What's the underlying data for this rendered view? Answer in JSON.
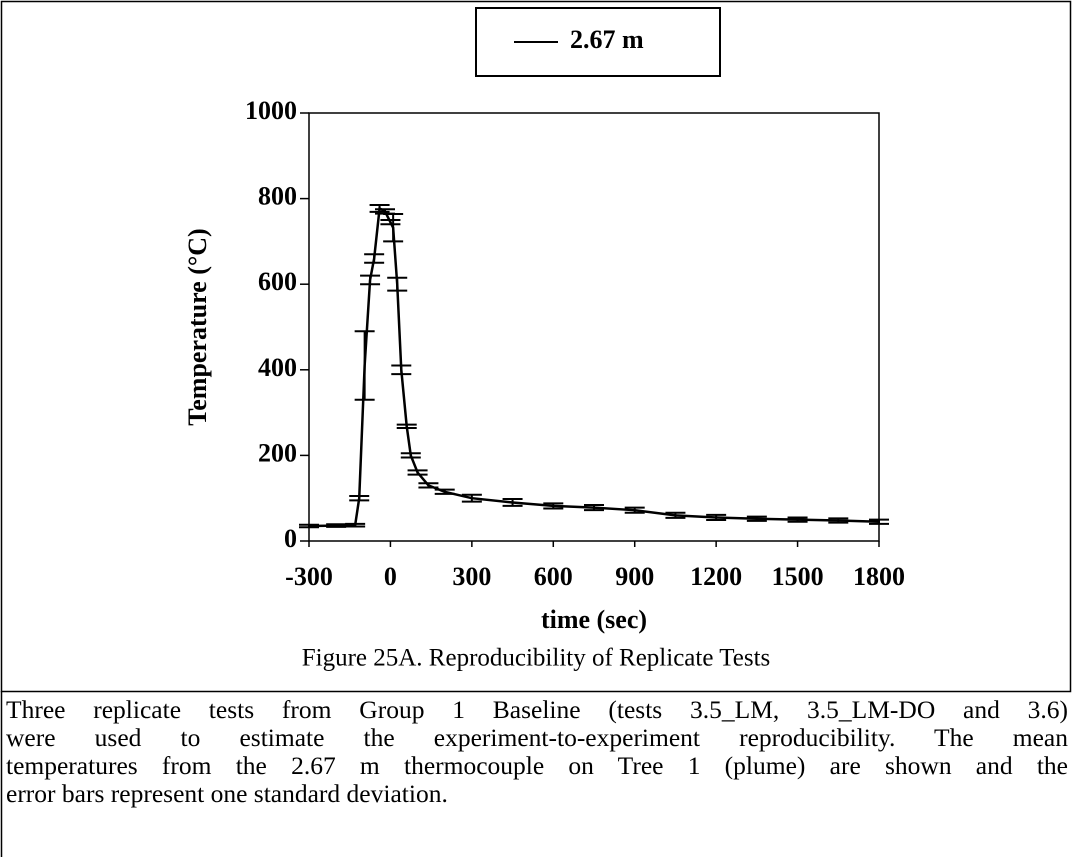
{
  "chart_data": {
    "type": "line",
    "xlabel": "time (sec)",
    "ylabel": "Temperature (°C)",
    "x": [
      -300,
      -200,
      -130,
      -115,
      -95,
      -75,
      -60,
      -40,
      -20,
      0,
      10,
      25,
      40,
      60,
      75,
      100,
      140,
      200,
      300,
      450,
      600,
      750,
      900,
      1050,
      1200,
      1350,
      1500,
      1650,
      1800
    ],
    "series": [
      {
        "name": "2.67 m",
        "color": "#000000",
        "values": [
          35,
          36,
          37,
          100,
          410,
          610,
          660,
          777,
          770,
          745,
          732,
          600,
          400,
          268,
          200,
          160,
          130,
          115,
          100,
          90,
          82,
          78,
          72,
          60,
          55,
          52,
          50,
          48,
          45
        ],
        "errors": [
          3,
          3,
          3,
          5,
          80,
          10,
          10,
          8,
          5,
          5,
          32,
          15,
          10,
          4,
          5,
          5,
          5,
          5,
          8,
          8,
          6,
          6,
          6,
          6,
          6,
          5,
          5,
          5,
          5
        ]
      }
    ],
    "xlim": [
      -300,
      1800
    ],
    "xticks": [
      -300,
      0,
      300,
      600,
      900,
      1200,
      1500,
      1800
    ],
    "ylim": [
      0,
      1000
    ],
    "yticks": [
      0,
      200,
      400,
      600,
      800,
      1000
    ],
    "grid": false,
    "legend": "top"
  },
  "caption": "Figure 25A. Reproducibility of Replicate Tests",
  "paragraph": [
    "Three replicate tests from Group 1 Baseline (tests 3.5_LM, 3.5_LM-DO and 3.6)",
    "were used to estimate the experiment-to-experiment reproducibility. The mean",
    "temperatures from the 2.67 m thermocouple on Tree 1 (plume) are shown and the",
    "error bars represent one standard deviation."
  ]
}
